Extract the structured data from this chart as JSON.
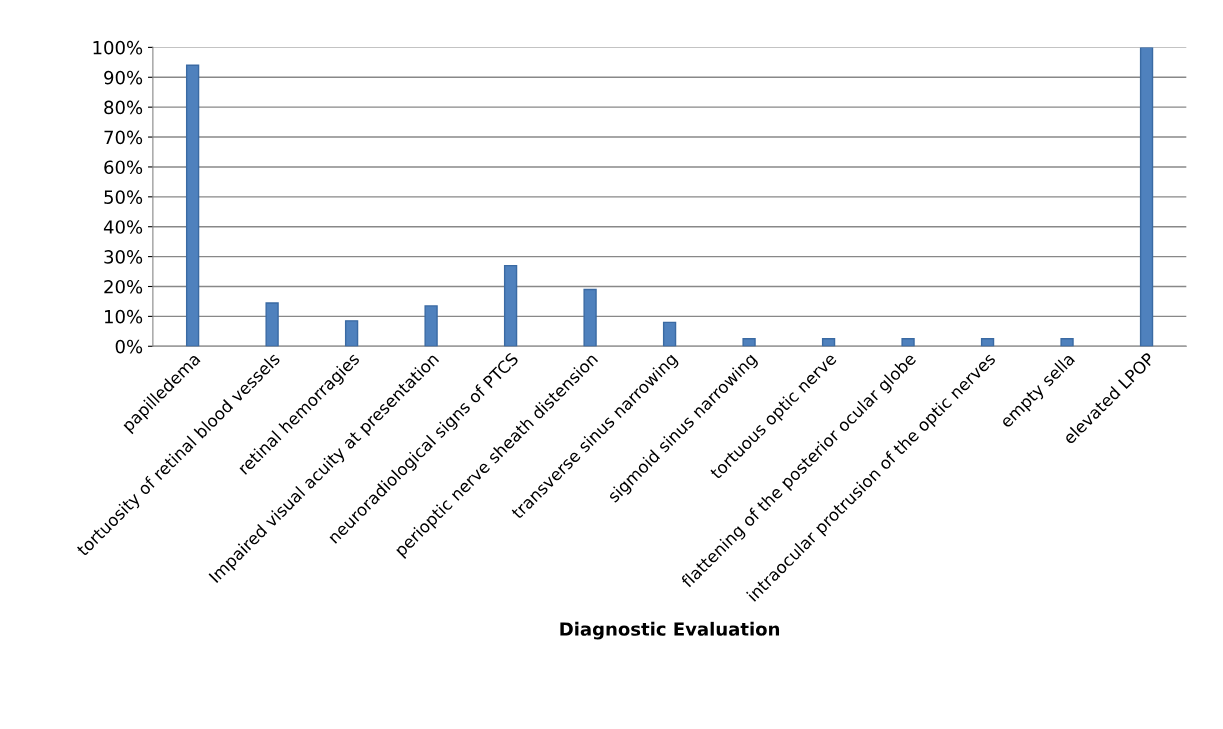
{
  "chart_data": {
    "type": "bar",
    "xlabel": "Diagnostic Evaluation",
    "categories": [
      "papilledema",
      "tortuosity of retinal blood vessels",
      "retinal hemorragies",
      "Impaired visual acuity at presentation",
      "neuroradiological signs of PTCS",
      "perioptic nerve sheath distension",
      "transverse sinus narrowing",
      "sigmoid sinus narrowing",
      "tortuous optic nerve",
      "flattening of the posterior ocular globe",
      "intraocular protrusion of the optic nerves",
      "empty sella",
      "elevated LPOP"
    ],
    "values": [
      94,
      14.5,
      8.5,
      13.5,
      27,
      19,
      8,
      2.5,
      2.5,
      2.5,
      2.5,
      2.5,
      100
    ],
    "color": "#4f81bd",
    "ylim": [
      0,
      100
    ],
    "yticks": [
      {
        "value": 0,
        "label": "0%"
      },
      {
        "value": 10,
        "label": "10%"
      },
      {
        "value": 20,
        "label": "20%"
      },
      {
        "value": 30,
        "label": "30%"
      },
      {
        "value": 40,
        "label": "40%"
      },
      {
        "value": 50,
        "label": "50%"
      },
      {
        "value": 60,
        "label": "60%"
      },
      {
        "value": 70,
        "label": "70%"
      },
      {
        "value": 80,
        "label": "80%"
      },
      {
        "value": 90,
        "label": "90%"
      },
      {
        "value": 100,
        "label": "100%"
      }
    ],
    "grid": "y"
  }
}
